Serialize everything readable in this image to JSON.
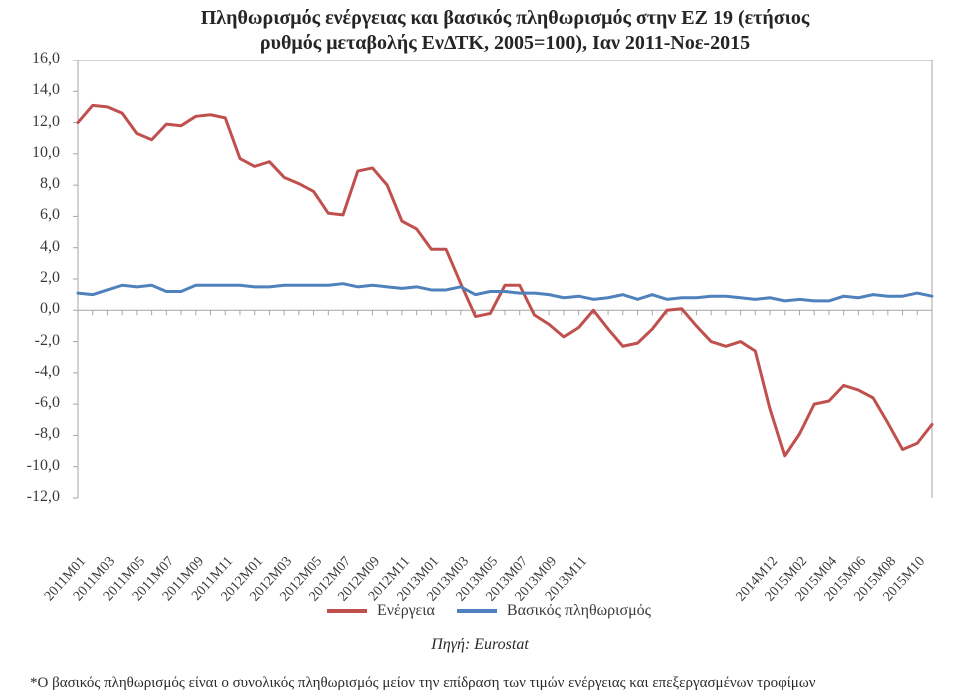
{
  "chart": {
    "type": "line",
    "title_line1": "Πληθωρισμός ενέργειας και βασικός πληθωρισμός στην ΕΖ 19 (ετήσιος",
    "title_line2": "ρυθμός μεταβολής ΕνΔΤΚ, 2005=100), Ιαν 2011-Νοε-2015",
    "title_fontsize": 20,
    "background_color": "#ffffff",
    "plot_border_color": "#a6a6a6",
    "axis_line_color": "#a6a6a6",
    "tick_color": "#a6a6a6",
    "ylim": [
      -12,
      16
    ],
    "ytick_step": 2,
    "ylabels": [
      "16,0",
      "14,0",
      "12,0",
      "10,0",
      "8,0",
      "6,0",
      "4,0",
      "2,0",
      "0,0",
      "-2,0",
      "-4,0",
      "-6,0",
      "-8,0",
      "-10,0",
      "-12,0"
    ],
    "series": {
      "energy": {
        "label": "Ενέργεια",
        "color": "#c0504d",
        "width": 3,
        "values": [
          12.0,
          13.1,
          13.0,
          12.6,
          11.3,
          10.9,
          11.9,
          11.8,
          12.4,
          12.5,
          12.3,
          9.7,
          9.2,
          9.5,
          8.5,
          8.1,
          7.6,
          6.2,
          6.1,
          8.9,
          9.1,
          8.0,
          5.7,
          5.2,
          3.9,
          3.9,
          1.7,
          -0.4,
          -0.2,
          1.6,
          1.6,
          -0.3,
          -0.9,
          -1.7,
          -1.1,
          0.0,
          -1.2,
          -2.3,
          -2.1,
          -1.2,
          0.0,
          0.1,
          -1.0,
          -2.0,
          -2.3,
          -2.0,
          -2.6,
          -6.3,
          -9.3,
          -7.9,
          -6.0,
          -5.8,
          -4.8,
          -5.1,
          -5.6,
          -7.2,
          -8.9,
          -8.5,
          -7.3
        ]
      },
      "core": {
        "label": "Βασικός πληθωρισμός",
        "color": "#4f81bd",
        "width": 3,
        "values": [
          1.1,
          1.0,
          1.3,
          1.6,
          1.5,
          1.6,
          1.2,
          1.2,
          1.6,
          1.6,
          1.6,
          1.6,
          1.5,
          1.5,
          1.6,
          1.6,
          1.6,
          1.6,
          1.7,
          1.5,
          1.6,
          1.5,
          1.4,
          1.5,
          1.3,
          1.3,
          1.5,
          1.0,
          1.2,
          1.2,
          1.1,
          1.1,
          1.0,
          0.8,
          0.9,
          0.7,
          0.8,
          1.0,
          0.7,
          1.0,
          0.7,
          0.8,
          0.8,
          0.9,
          0.9,
          0.8,
          0.7,
          0.8,
          0.6,
          0.7,
          0.6,
          0.6,
          0.9,
          0.8,
          1.0,
          0.9,
          0.9,
          1.1,
          0.9
        ]
      }
    },
    "xlabels": [
      "2011M01",
      "2011M03",
      "2011M05",
      "2011M07",
      "2011M09",
      "2011M11",
      "2012M01",
      "2012M03",
      "2012M05",
      "2012M07",
      "2012M09",
      "2012M11",
      "2013M01",
      "2013M03",
      "2013M05",
      "2013M07",
      "2013M09",
      "2013M11",
      "2014M12",
      "2015M02",
      "2015M04",
      "2015M06",
      "2015M08",
      "2015M10"
    ],
    "xlabel_every": 2,
    "xlabel_irregular_start": 18,
    "n_points": 59,
    "label_fontsize": 16
  },
  "legend": {
    "energy_label": "Ενέργεια",
    "core_label": "Βασικός πληθωρισμός"
  },
  "source": "Πηγή: Eurostat",
  "footnote": "*Ο βασικός πληθωρισμός είναι ο συνολικός πληθωρισμός μείον την επίδραση των τιμών ενέργειας και επεξεργασμένων τροφίμων"
}
